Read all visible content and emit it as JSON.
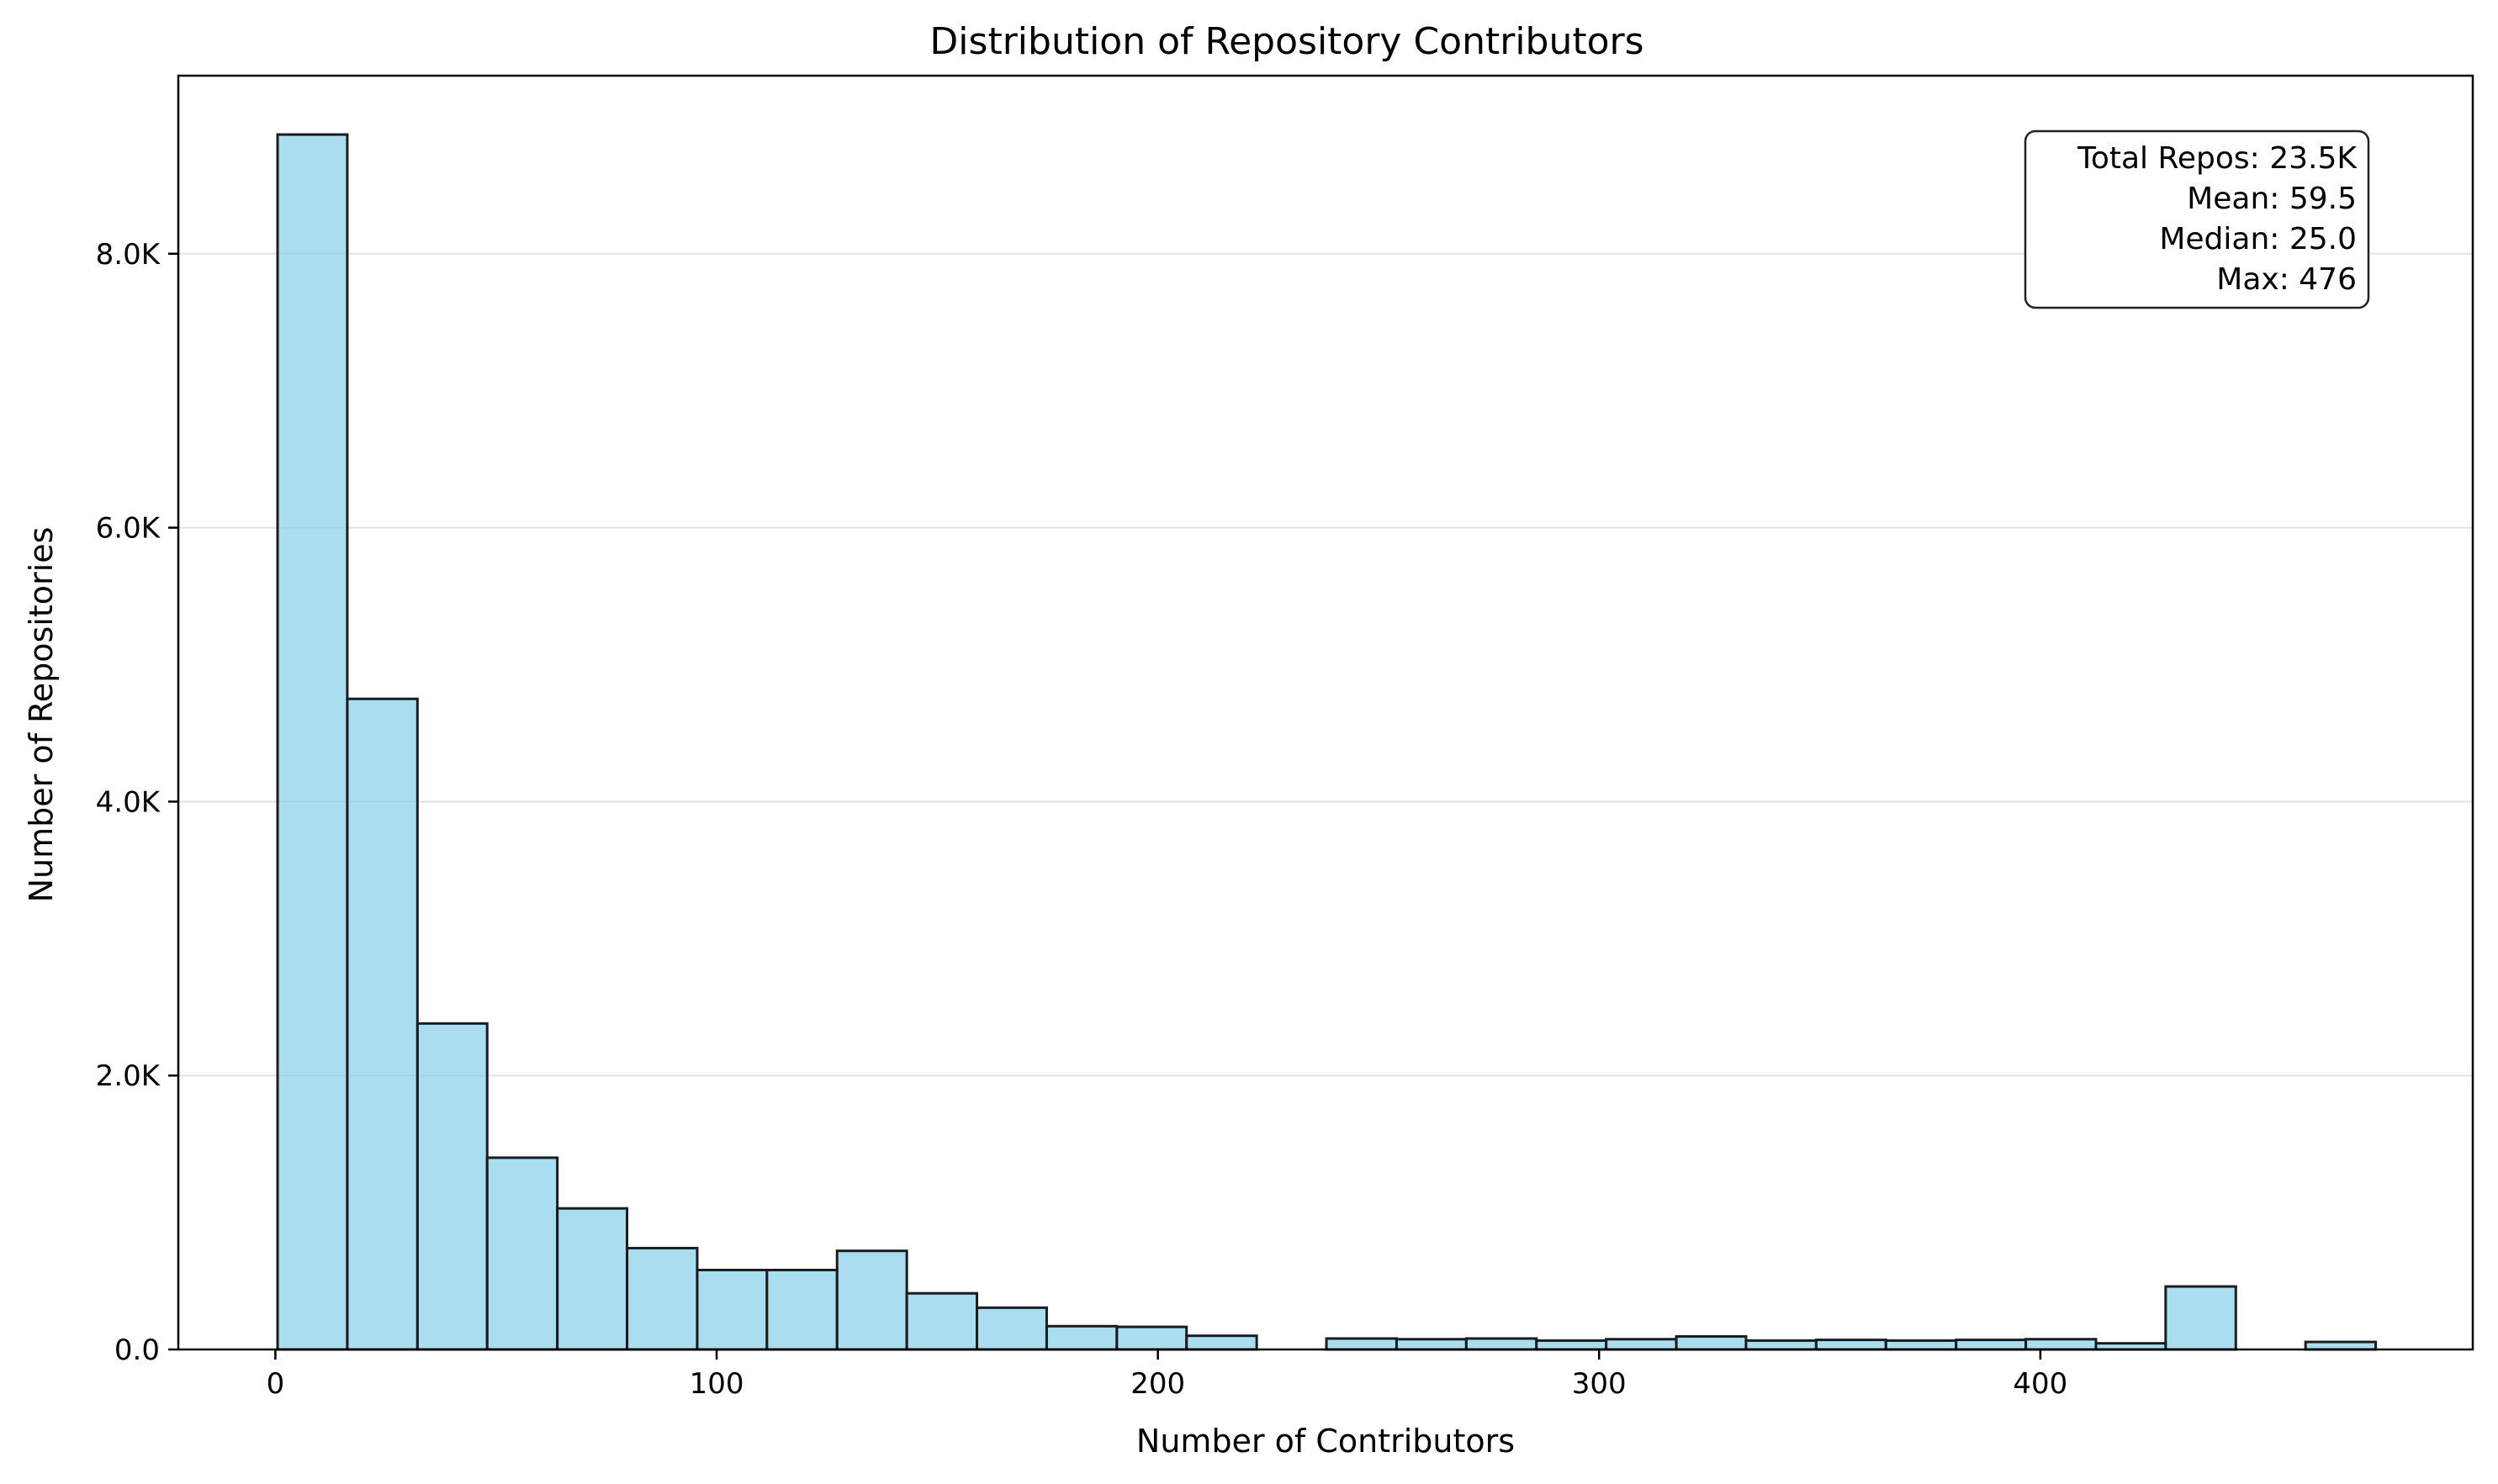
{
  "chart_data": {
    "type": "bar",
    "title": "Distribution of Repository Contributors",
    "xlabel": "Number of Contributors",
    "ylabel": "Number of Repositories",
    "xlim": [
      -22,
      498
    ],
    "ylim": [
      0,
      9300
    ],
    "x_ticks": [
      0,
      100,
      200,
      300,
      400
    ],
    "x_tick_labels": [
      "0",
      "100",
      "200",
      "300",
      "400"
    ],
    "y_ticks": [
      0,
      2000,
      4000,
      6000,
      8000
    ],
    "y_tick_labels": [
      "0.0",
      "2.0K",
      "4.0K",
      "6.0K",
      "8.0K"
    ],
    "grid": "horizontal",
    "bin_edges": [
      0.5,
      16.3,
      32.2,
      48.0,
      63.9,
      79.7,
      95.6,
      111.4,
      127.3,
      143.1,
      159.0,
      174.8,
      190.7,
      206.5,
      222.4,
      238.2,
      254.1,
      269.9,
      285.8,
      301.6,
      317.5,
      333.3,
      349.2,
      365.0,
      380.9,
      396.7,
      412.6,
      428.4,
      444.3,
      460.1,
      476.0
    ],
    "counts": [
      8870,
      4750,
      2380,
      1400,
      1030,
      740,
      580,
      580,
      720,
      410,
      305,
      170,
      165,
      100,
      0,
      80,
      75,
      80,
      65,
      75,
      95,
      65,
      70,
      65,
      70,
      75,
      45,
      460,
      0,
      55
    ],
    "bar_color": "#87ceeb",
    "bar_edge_color": "#1c1c1c",
    "stats_box": {
      "lines": [
        "Total Repos: 23.5K",
        "Mean: 59.5",
        "Median: 25.0",
        "Max: 476"
      ],
      "placement": "top-right"
    }
  }
}
